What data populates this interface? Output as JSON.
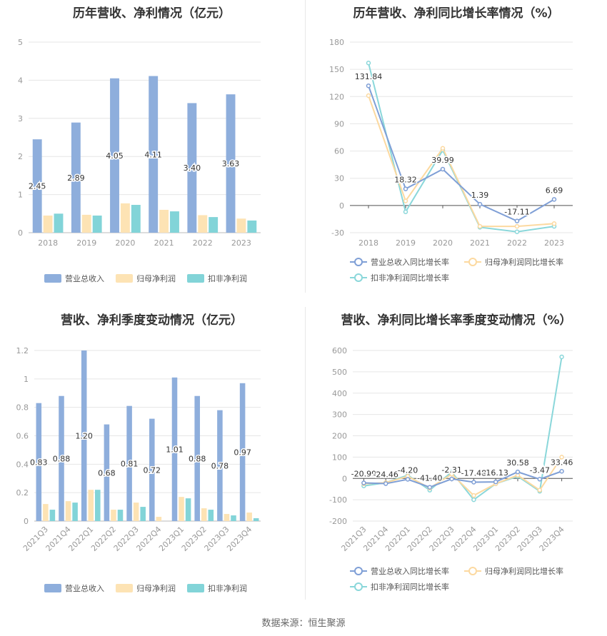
{
  "source": "数据来源：恒生聚源",
  "colors": {
    "revenue": "#8eaedc",
    "net_profit": "#fde3b4",
    "deducted_profit": "#82d4d8",
    "line_revenue": "#7f9fd6",
    "line_net": "#fcd9a0",
    "line_deducted": "#8ad7da",
    "grid": "#e6e6e6",
    "axis_text": "#999999"
  },
  "chart_data": [
    {
      "type": "bar",
      "title": "历年营收、净利情况（亿元）",
      "categories": [
        "2018",
        "2019",
        "2020",
        "2021",
        "2022",
        "2023"
      ],
      "ylim": [
        0,
        5
      ],
      "yticks": [
        0,
        1,
        2,
        3,
        4,
        5
      ],
      "series": [
        {
          "name": "营业总收入",
          "values": [
            2.45,
            2.89,
            4.05,
            4.11,
            3.4,
            3.63
          ],
          "labels": [
            "2.45",
            "2.89",
            "4.05",
            "4.11",
            "3.40",
            "3.63"
          ]
        },
        {
          "name": "归母净利润",
          "values": [
            0.45,
            0.47,
            0.77,
            0.6,
            0.46,
            0.37
          ]
        },
        {
          "name": "扣非净利润",
          "values": [
            0.5,
            0.45,
            0.73,
            0.56,
            0.41,
            0.32
          ]
        }
      ],
      "legend": "bottom"
    },
    {
      "type": "line",
      "title": "历年营收、净利同比增长率情况（%）",
      "categories": [
        "2018",
        "2019",
        "2020",
        "2021",
        "2022",
        "2023"
      ],
      "ylim": [
        -30,
        180
      ],
      "yticks": [
        -30,
        0,
        30,
        60,
        90,
        120,
        150,
        180
      ],
      "series": [
        {
          "name": "营业总收入同比增长率",
          "values": [
            131.84,
            18.32,
            39.99,
            1.39,
            -17.11,
            6.69
          ],
          "labels": [
            "131.84",
            "18.32",
            "39.99",
            "1.39",
            "-17.11",
            "6.69"
          ]
        },
        {
          "name": "归母净利润同比增长率",
          "values": [
            121,
            5,
            63,
            -23,
            -23,
            -20
          ]
        },
        {
          "name": "扣非净利润同比增长率",
          "values": [
            157,
            -7,
            61,
            -24,
            -29,
            -23
          ]
        }
      ],
      "legend": "bottom"
    },
    {
      "type": "bar",
      "title": "营收、净利季度变动情况（亿元）",
      "categories": [
        "2021Q3",
        "2021Q4",
        "2022Q1",
        "2022Q2",
        "2022Q3",
        "2022Q4",
        "2023Q1",
        "2023Q2",
        "2023Q3",
        "2023Q4"
      ],
      "ylim": [
        0,
        1.2
      ],
      "yticks": [
        0,
        0.2,
        0.4,
        0.6,
        0.8,
        1,
        1.2
      ],
      "ytick_labels": [
        "0",
        "0.2",
        "0.4",
        "0.6",
        "0.8",
        "1",
        "1.2"
      ],
      "series": [
        {
          "name": "营业总收入",
          "values": [
            0.83,
            0.88,
            1.2,
            0.68,
            0.81,
            0.72,
            1.01,
            0.88,
            0.78,
            0.97
          ],
          "labels": [
            "0.83",
            "0.88",
            "1.20",
            "0.68",
            "0.81",
            "0.72",
            "1.01",
            "0.88",
            "0.78",
            "0.97"
          ]
        },
        {
          "name": "归母净利润",
          "values": [
            0.12,
            0.14,
            0.22,
            0.08,
            0.13,
            0.03,
            0.17,
            0.09,
            0.05,
            0.06
          ]
        },
        {
          "name": "扣非净利润",
          "values": [
            0.08,
            0.13,
            0.22,
            0.08,
            0.1,
            0.0,
            0.16,
            0.08,
            0.04,
            0.02
          ]
        }
      ],
      "legend": "bottom"
    },
    {
      "type": "line",
      "title": "营收、净利同比增长率季度变动情况（%）",
      "categories": [
        "2021Q3",
        "2021Q4",
        "2022Q1",
        "2022Q2",
        "2022Q3",
        "2022Q4",
        "2023Q1",
        "2023Q2",
        "2023Q3",
        "2023Q4"
      ],
      "ylim": [
        -200,
        600
      ],
      "yticks": [
        -200,
        -100,
        0,
        100,
        200,
        300,
        400,
        500,
        600
      ],
      "series": [
        {
          "name": "营业总收入同比增长率",
          "values": [
            -20.99,
            -24.46,
            -4.2,
            -41.4,
            -2.31,
            -17.48,
            -16.13,
            30.58,
            -3.47,
            33.46
          ],
          "labels": [
            "-20.99",
            "-24.46",
            "-4.20",
            "-41.40",
            "-2.31",
            "-17.48",
            "-16.13",
            "30.58",
            "-3.47",
            "33.46"
          ]
        },
        {
          "name": "归母净利润同比增长率",
          "values": [
            -25,
            -20,
            10,
            -45,
            20,
            -80,
            -25,
            15,
            -55,
            100
          ]
        },
        {
          "name": "扣非净利润同比增长率",
          "values": [
            -35,
            -20,
            15,
            -55,
            30,
            -100,
            -25,
            10,
            -60,
            570
          ]
        }
      ],
      "legend": "bottom"
    }
  ]
}
